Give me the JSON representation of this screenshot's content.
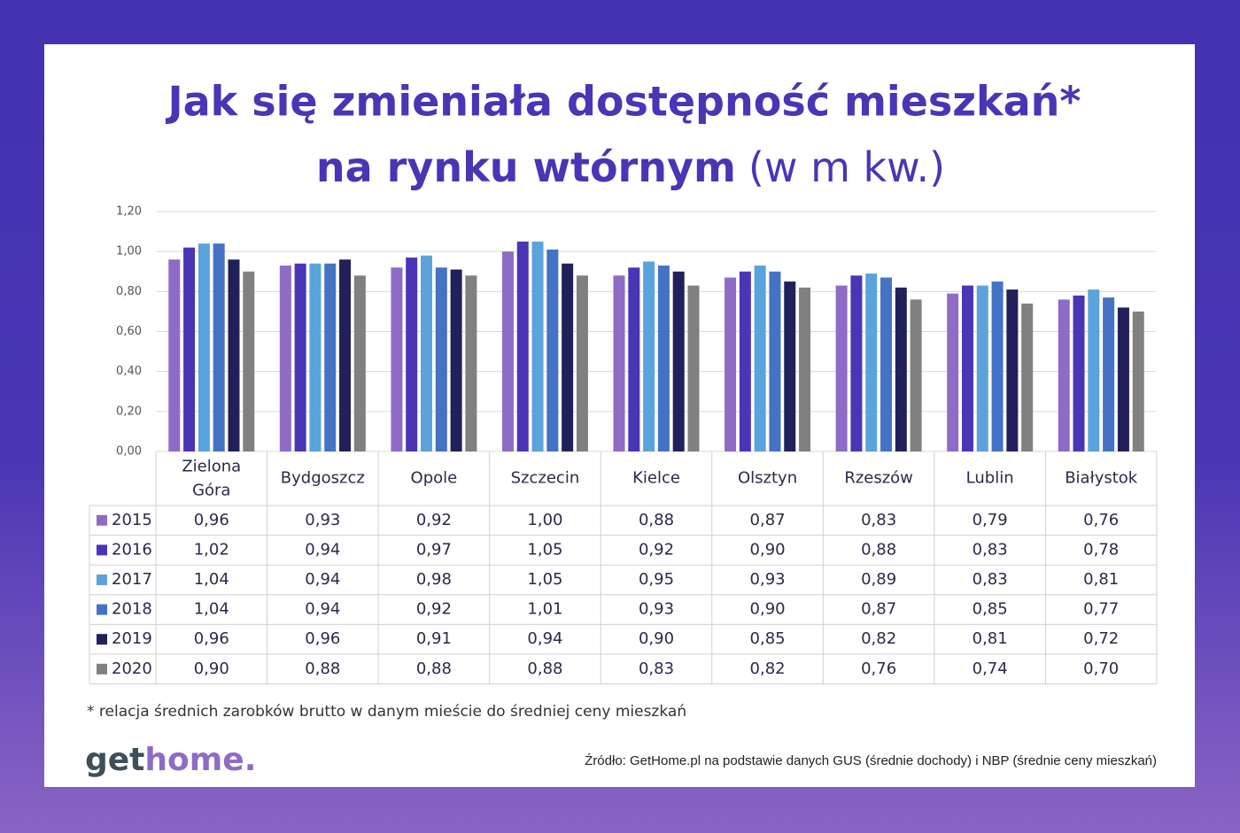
{
  "chart_data": {
    "type": "bar",
    "title_line1": "Jak się zmieniała dostępność mieszkań*",
    "title_line2": "na rynku wtórnym",
    "title_unit": "(w m kw.)",
    "categories": [
      "Zielona Góra",
      "Bydgoszcz",
      "Opole",
      "Szczecin",
      "Kielce",
      "Olsztyn",
      "Rzeszów",
      "Lublin",
      "Białystok"
    ],
    "series": [
      {
        "name": "2015",
        "color": "#8e6cc6",
        "values": [
          0.96,
          0.93,
          0.92,
          1.0,
          0.88,
          0.87,
          0.83,
          0.79,
          0.76
        ],
        "value_labels": [
          "0,96",
          "0,93",
          "0,92",
          "1,00",
          "0,88",
          "0,87",
          "0,83",
          "0,79",
          "0,76"
        ]
      },
      {
        "name": "2016",
        "color": "#4a35b5",
        "values": [
          1.02,
          0.94,
          0.97,
          1.05,
          0.92,
          0.9,
          0.88,
          0.83,
          0.78
        ],
        "value_labels": [
          "1,02",
          "0,94",
          "0,97",
          "1,05",
          "0,92",
          "0,90",
          "0,88",
          "0,83",
          "0,78"
        ]
      },
      {
        "name": "2017",
        "color": "#5ba3dc",
        "values": [
          1.04,
          0.94,
          0.98,
          1.05,
          0.95,
          0.93,
          0.89,
          0.83,
          0.81
        ],
        "value_labels": [
          "1,04",
          "0,94",
          "0,98",
          "1,05",
          "0,95",
          "0,93",
          "0,89",
          "0,83",
          "0,81"
        ]
      },
      {
        "name": "2018",
        "color": "#4472c4",
        "values": [
          1.04,
          0.94,
          0.92,
          1.01,
          0.93,
          0.9,
          0.87,
          0.85,
          0.77
        ],
        "value_labels": [
          "1,04",
          "0,94",
          "0,92",
          "1,01",
          "0,93",
          "0,90",
          "0,87",
          "0,85",
          "0,77"
        ]
      },
      {
        "name": "2019",
        "color": "#22205a",
        "values": [
          0.96,
          0.96,
          0.91,
          0.94,
          0.9,
          0.85,
          0.82,
          0.81,
          0.72
        ],
        "value_labels": [
          "0,96",
          "0,96",
          "0,91",
          "0,94",
          "0,90",
          "0,85",
          "0,82",
          "0,81",
          "0,72"
        ]
      },
      {
        "name": "2020",
        "color": "#808080",
        "values": [
          0.9,
          0.88,
          0.88,
          0.88,
          0.83,
          0.82,
          0.76,
          0.74,
          0.7
        ],
        "value_labels": [
          "0,90",
          "0,88",
          "0,88",
          "0,88",
          "0,83",
          "0,82",
          "0,76",
          "0,74",
          "0,70"
        ]
      }
    ],
    "ylim": [
      0,
      1.2
    ],
    "yticks": [
      {
        "value": 0,
        "label": "0,00"
      },
      {
        "value": 0.2,
        "label": "0,20"
      },
      {
        "value": 0.4,
        "label": "0,40"
      },
      {
        "value": 0.6,
        "label": "0,60"
      },
      {
        "value": 0.8,
        "label": "0,80"
      },
      {
        "value": 1.0,
        "label": "1,00"
      },
      {
        "value": 1.2,
        "label": "1,20"
      }
    ],
    "grid": true,
    "footnote": "* relacja średnich zarobków brutto w danym mieście do średniej ceny mieszkań",
    "source": "Źródło: GetHome.pl na podstawie danych GUS (średnie dochody) i NBP (średnie ceny mieszkań)",
    "logo_dark": "get",
    "logo_light": "home."
  }
}
